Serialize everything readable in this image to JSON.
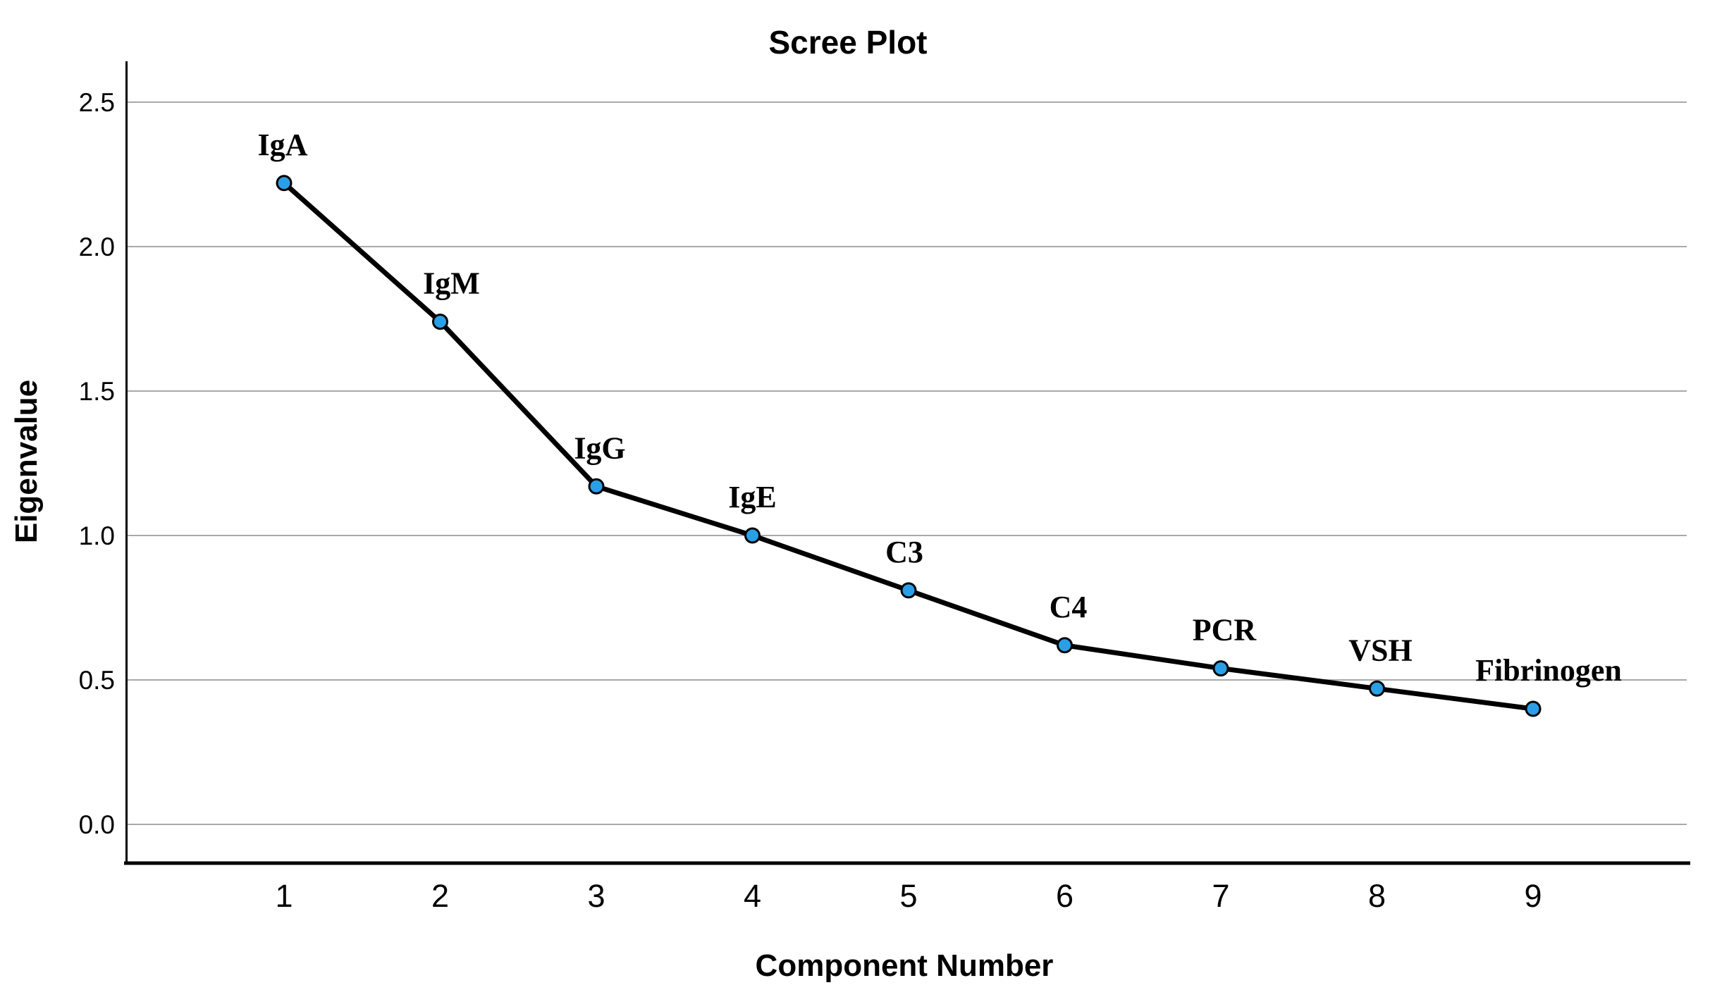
{
  "chart_data": {
    "type": "line",
    "title": "Scree Plot",
    "xlabel": "Component Number",
    "ylabel": "Eigenvalue",
    "x": [
      1,
      2,
      3,
      4,
      5,
      6,
      7,
      8,
      9
    ],
    "x_tick_labels": [
      "1",
      "2",
      "3",
      "4",
      "5",
      "6",
      "7",
      "8",
      "9"
    ],
    "y_tick_labels": [
      "0.0",
      "0.5",
      "1.0",
      "1.5",
      "2.0",
      "2.5"
    ],
    "series": [
      {
        "name": "Eigenvalues",
        "points": [
          {
            "component": 1,
            "label": "IgA",
            "eigenvalue": 2.22
          },
          {
            "component": 2,
            "label": "IgM",
            "eigenvalue": 1.74
          },
          {
            "component": 3,
            "label": "IgG",
            "eigenvalue": 1.17
          },
          {
            "component": 4,
            "label": "IgE",
            "eigenvalue": 1.0
          },
          {
            "component": 5,
            "label": "C3",
            "eigenvalue": 0.81
          },
          {
            "component": 6,
            "label": "C4",
            "eigenvalue": 0.62
          },
          {
            "component": 7,
            "label": "PCR",
            "eigenvalue": 0.54
          },
          {
            "component": 8,
            "label": "VSH",
            "eigenvalue": 0.47
          },
          {
            "component": 9,
            "label": "Fibrinogen",
            "eigenvalue": 0.4
          }
        ]
      }
    ],
    "ylim": [
      0.0,
      2.64
    ],
    "grid": "horizontal-only",
    "legend_position": "none",
    "colors": {
      "marker_fill": "#2B9FE6",
      "marker_stroke": "#000000",
      "line": "#000000",
      "gridline": "#A9A9A9",
      "axis": "#000000",
      "text": "#000000",
      "background": "#FFFFFF"
    }
  }
}
